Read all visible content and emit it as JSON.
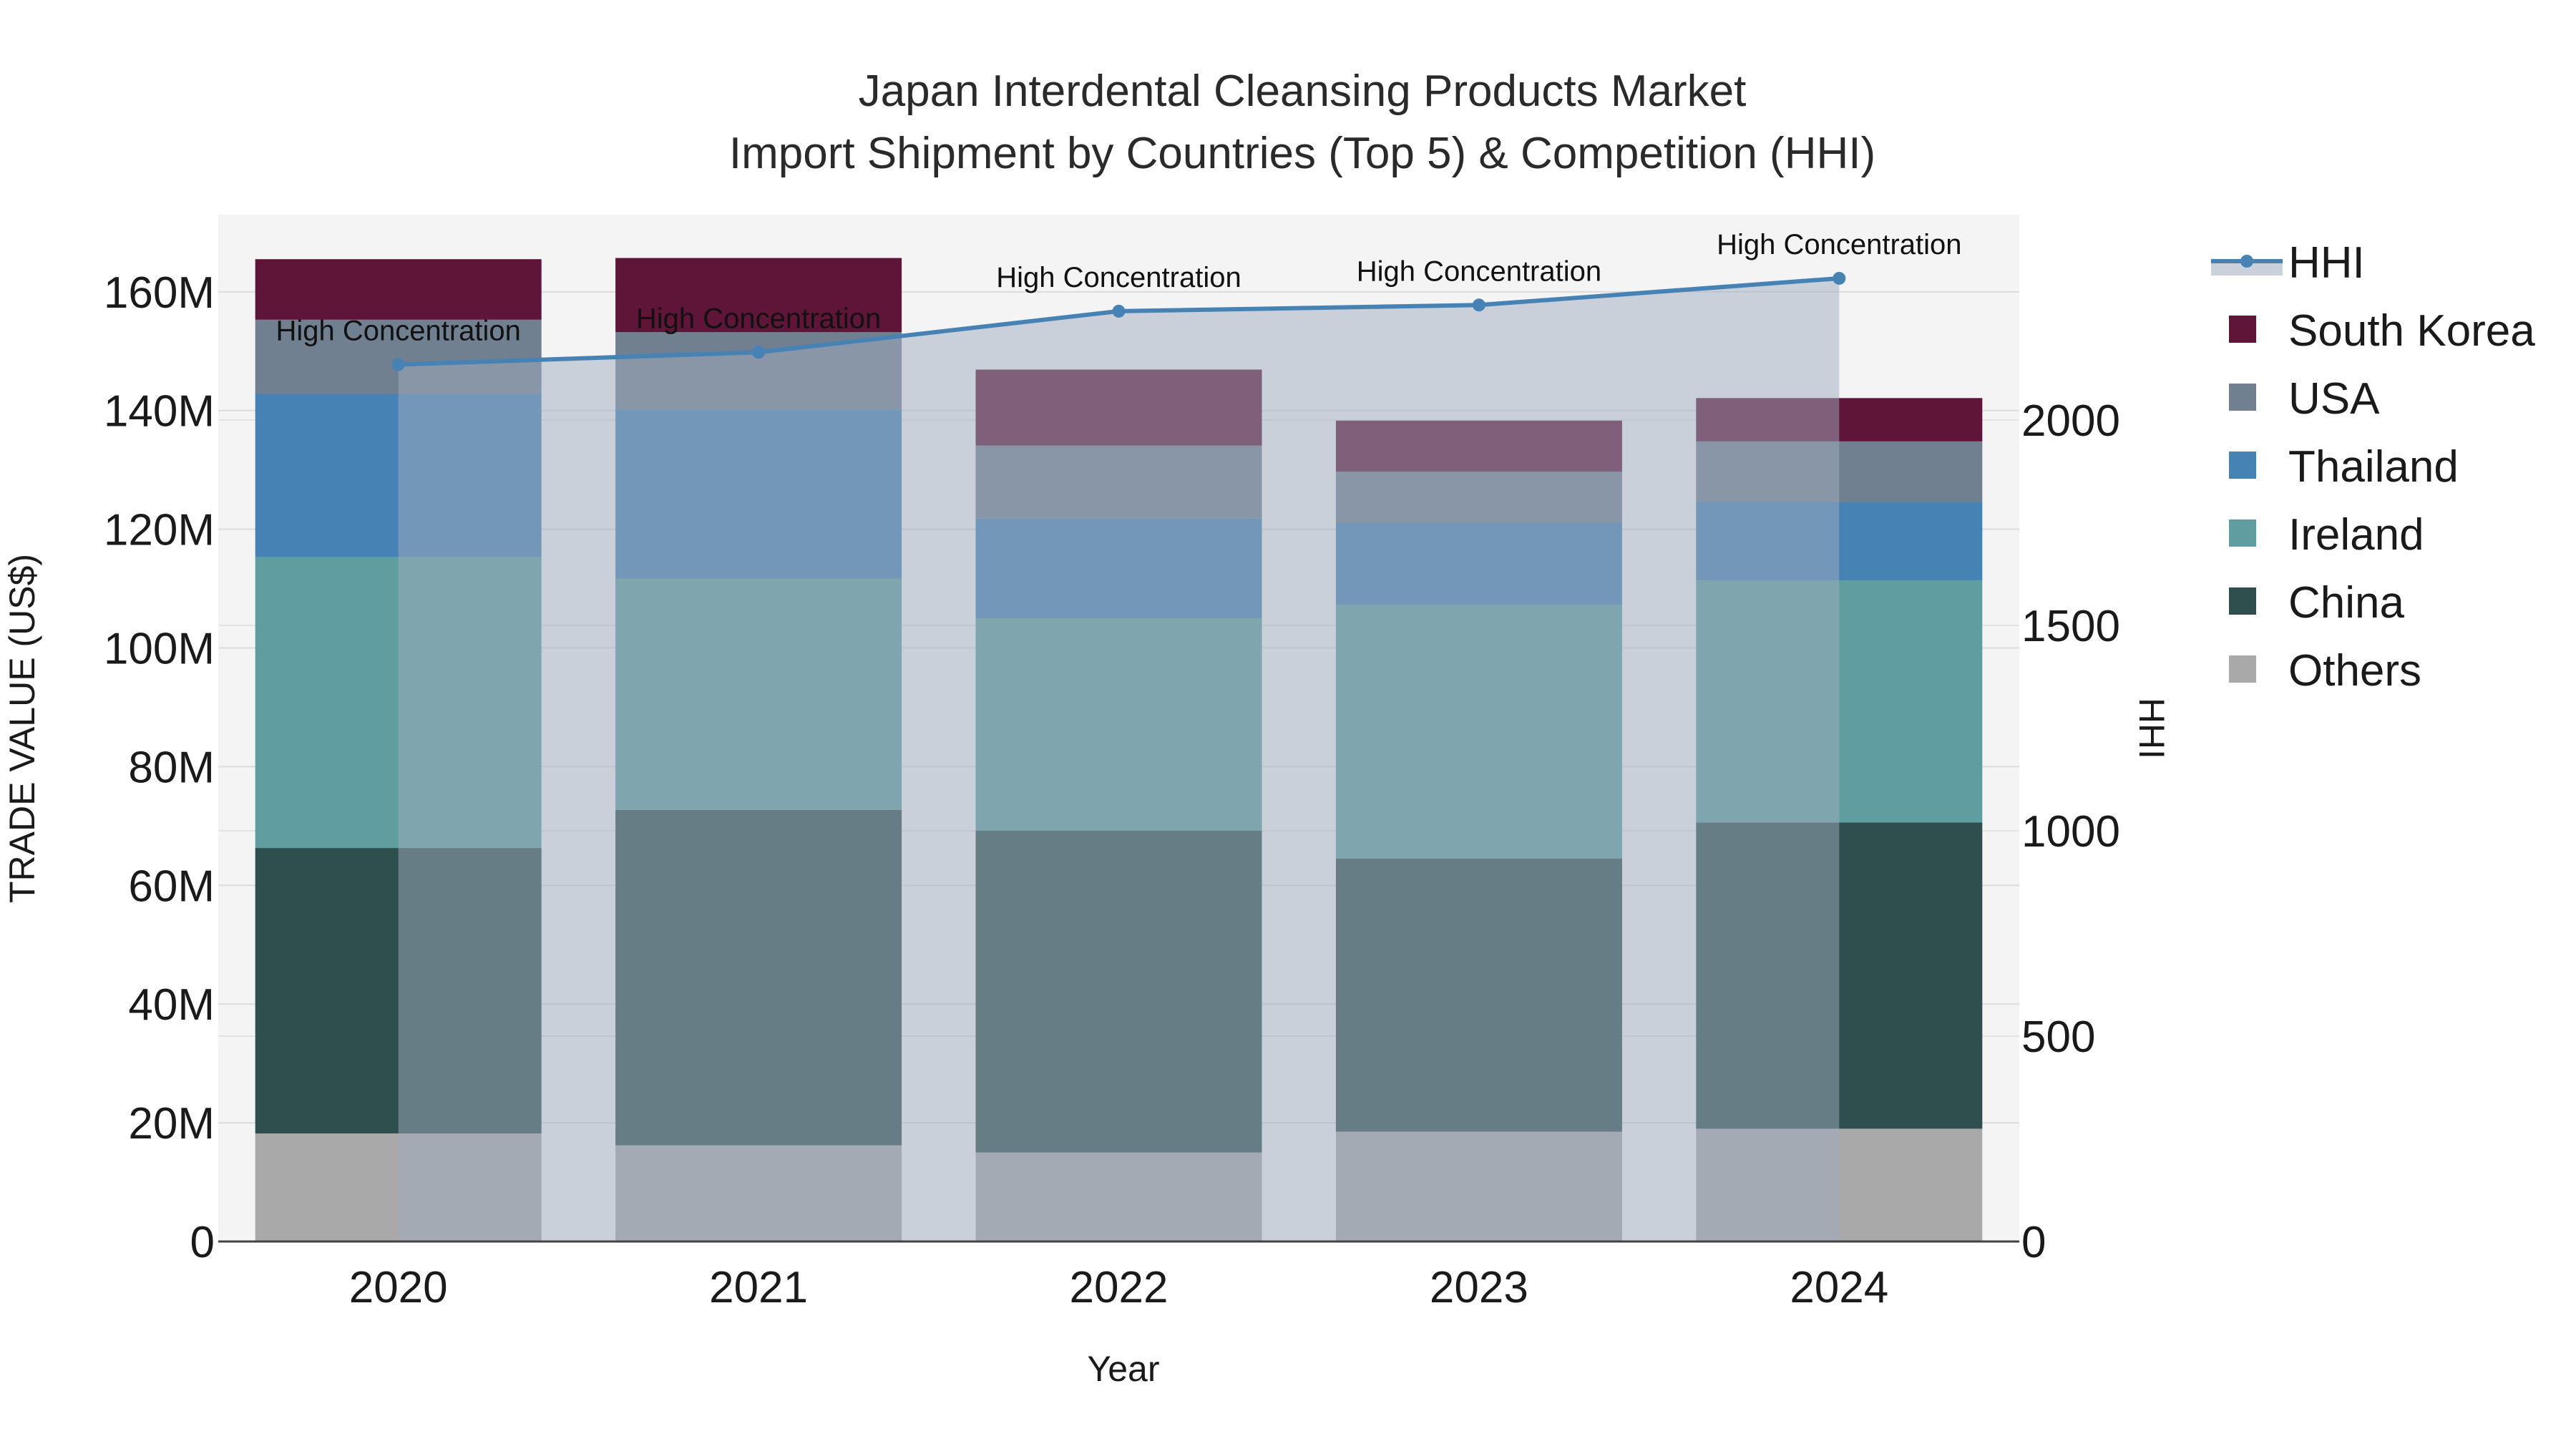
{
  "chart_data": {
    "type": "bar",
    "stacked": true,
    "title_line1": "Japan Interdental Cleansing Products Market",
    "title_line2": "Import Shipment by Countries (Top 5) & Competition (HHI)",
    "xlabel": "Year",
    "ylabel": "TRADE VALUE (US$)",
    "y2label": "HHI",
    "categories": [
      "2020",
      "2021",
      "2022",
      "2023",
      "2024"
    ],
    "ylim": [
      0,
      173
    ],
    "yticks": [
      0,
      20,
      40,
      60,
      80,
      100,
      120,
      140,
      160
    ],
    "ytick_labels": [
      "0",
      "20M",
      "40M",
      "60M",
      "80M",
      "100M",
      "120M",
      "140M",
      "160M"
    ],
    "y2lim": [
      0,
      2500
    ],
    "y2ticks": [
      0,
      500,
      1000,
      1500,
      2000
    ],
    "y2tick_labels": [
      "0",
      "500",
      "1000",
      "1500",
      "2000"
    ],
    "series": [
      {
        "name": "Others",
        "color": "#a9a9a9",
        "values": [
          18.2,
          16.2,
          15.0,
          18.5,
          19.0
        ]
      },
      {
        "name": "China",
        "color": "#2f4f4f",
        "values": [
          48.1,
          56.5,
          54.2,
          46.0,
          51.6
        ]
      },
      {
        "name": "Ireland",
        "color": "#5f9ea0",
        "values": [
          49.0,
          39.0,
          35.8,
          42.8,
          40.8
        ]
      },
      {
        "name": "Thailand",
        "color": "#4682b4",
        "values": [
          27.5,
          28.5,
          16.8,
          13.8,
          13.2
        ]
      },
      {
        "name": "USA",
        "color": "#708090",
        "values": [
          12.5,
          13.0,
          12.3,
          8.6,
          10.2
        ]
      },
      {
        "name": "South Korea",
        "color": "#5e1538",
        "values": [
          10.2,
          12.5,
          12.8,
          8.6,
          7.3
        ]
      }
    ],
    "hhi": {
      "name": "HHI",
      "color": "#4682b4",
      "values": [
        2135,
        2165,
        2265,
        2280,
        2345
      ],
      "annotations": [
        "High Concentration",
        "High Concentration",
        "High Concentration",
        "High Concentration",
        "High Concentration"
      ]
    },
    "legend_order": [
      "HHI",
      "South Korea",
      "USA",
      "Thailand",
      "Ireland",
      "China",
      "Others"
    ],
    "legend_position": "right"
  }
}
